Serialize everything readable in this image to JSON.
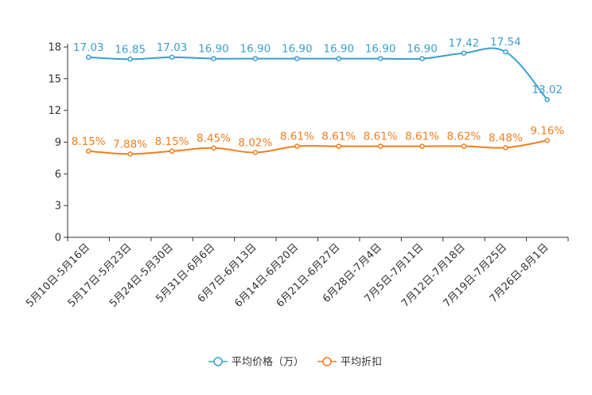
{
  "chart_data": {
    "type": "line",
    "title": "",
    "xlabel": "",
    "ylabel": "",
    "ylim": [
      0,
      18
    ],
    "yticks": [
      0,
      3,
      6,
      9,
      12,
      15,
      18
    ],
    "categories": [
      "5月10日-5月16日",
      "5月17日-5月23日",
      "5月24日-5月30日",
      "5月31日-6月6日",
      "6月7日-6月13日",
      "6月14日-6月20日",
      "6月21日-6月27日",
      "6月28日-7月4日",
      "7月5日-7月11日",
      "7月12日-7月18日",
      "7月19日-7月25日",
      "7月26日-8月1日"
    ],
    "series": [
      {
        "name": "平均价格（万）",
        "color": "#3a9fd0",
        "values": [
          17.03,
          16.85,
          17.03,
          16.9,
          16.9,
          16.9,
          16.9,
          16.9,
          16.9,
          17.42,
          17.54,
          13.02
        ],
        "labels": [
          "17.03",
          "16.85",
          "17.03",
          "16.90",
          "16.90",
          "16.90",
          "16.90",
          "16.90",
          "16.90",
          "17.42",
          "17.54",
          "13.02"
        ]
      },
      {
        "name": "平均折扣",
        "color": "#f47d1f",
        "values": [
          8.15,
          7.88,
          8.15,
          8.45,
          8.02,
          8.61,
          8.61,
          8.61,
          8.61,
          8.62,
          8.48,
          9.16
        ],
        "labels": [
          "8.15%",
          "7.88%",
          "8.15%",
          "8.45%",
          "8.02%",
          "8.61%",
          "8.61%",
          "8.61%",
          "8.61%",
          "8.62%",
          "8.48%",
          "9.16%"
        ]
      }
    ],
    "legend": "bottom-center",
    "grid": false
  }
}
